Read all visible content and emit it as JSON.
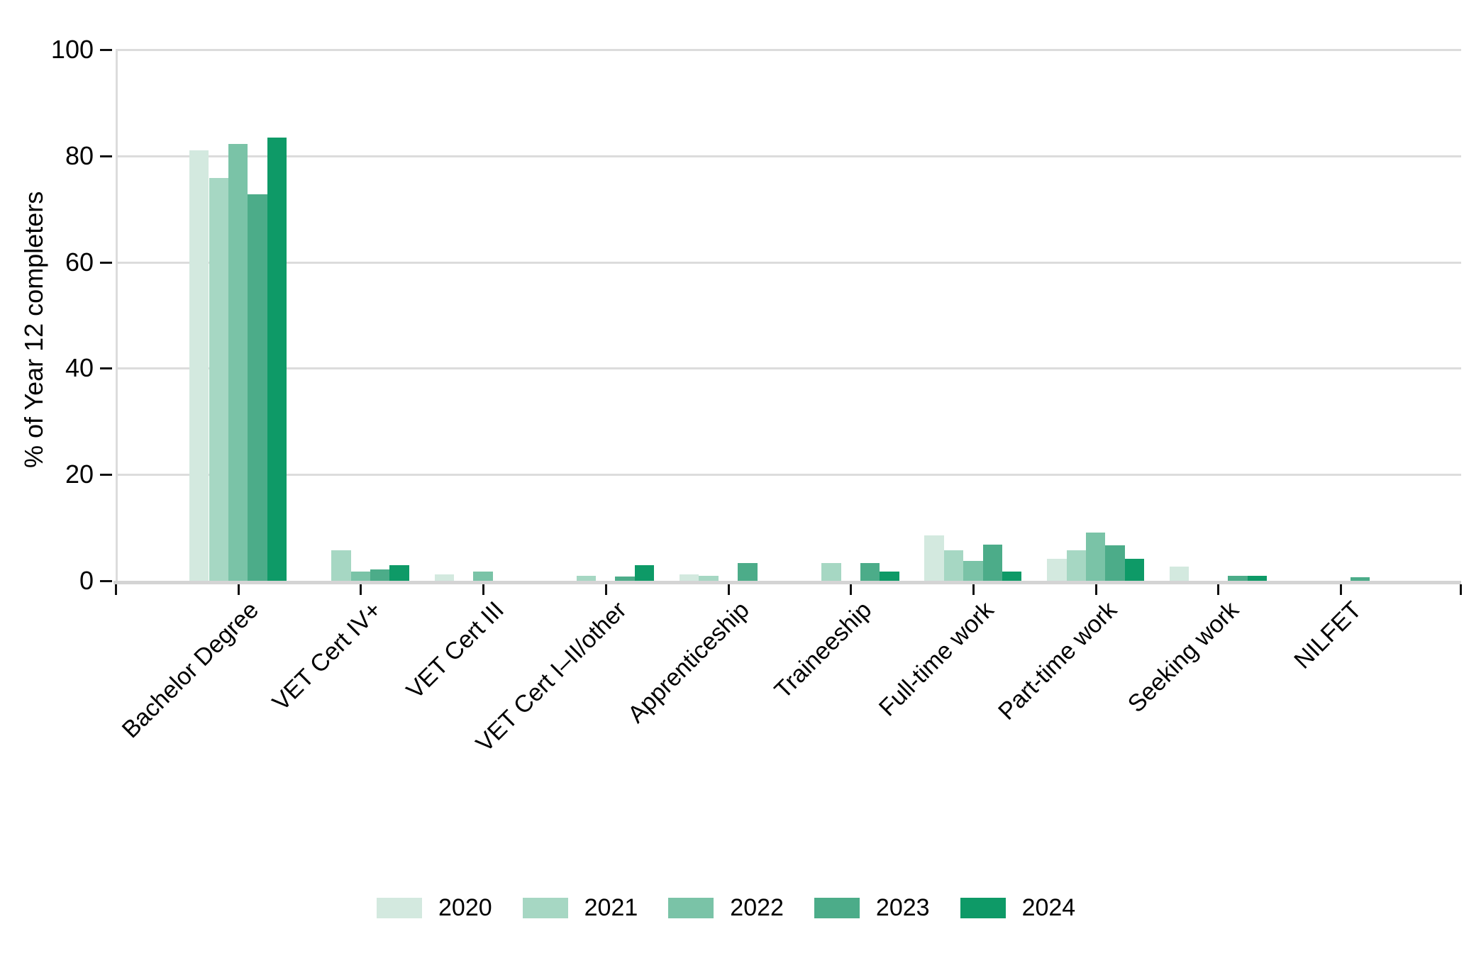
{
  "chart_data": {
    "type": "bar",
    "title": "",
    "xlabel": "",
    "ylabel": "% of Year 12 completers",
    "ylim": [
      0,
      100
    ],
    "y_ticks": [
      0,
      20,
      40,
      60,
      80,
      100
    ],
    "grid": "horizontal",
    "legend_position": "bottom",
    "categories": [
      "Bachelor Degree",
      "VET Cert IV+",
      "VET Cert III",
      "VET Cert I–II/other",
      "Apprenticeship",
      "Traineeship",
      "Full-time work",
      "Part-time work",
      "Seeking work",
      "NILFET"
    ],
    "series": [
      {
        "name": "2020",
        "color": "#d3e9df",
        "values": [
          81.0,
          0,
          1.2,
          0,
          1.2,
          0,
          8.6,
          4.2,
          2.7,
          0
        ]
      },
      {
        "name": "2021",
        "color": "#a6d7c3",
        "values": [
          75.9,
          5.8,
          0,
          1.0,
          1.0,
          3.4,
          5.8,
          5.8,
          0,
          0
        ]
      },
      {
        "name": "2022",
        "color": "#7ac3a7",
        "values": [
          82.3,
          1.7,
          1.7,
          0,
          0,
          0,
          3.8,
          9.1,
          0,
          0
        ]
      },
      {
        "name": "2023",
        "color": "#4cac89",
        "values": [
          72.8,
          2.1,
          0,
          0.8,
          3.3,
          3.3,
          6.8,
          6.7,
          0.9,
          0.7
        ]
      },
      {
        "name": "2024",
        "color": "#0e9a67",
        "values": [
          83.5,
          3.0,
          0,
          2.9,
          0,
          1.8,
          1.8,
          4.1,
          0.9,
          0
        ]
      }
    ]
  },
  "colors": {
    "gridline": "#dcdcdc",
    "axis_line": "#d4d4d4",
    "tick": "#111111",
    "text": "#000000",
    "background": "#ffffff"
  }
}
